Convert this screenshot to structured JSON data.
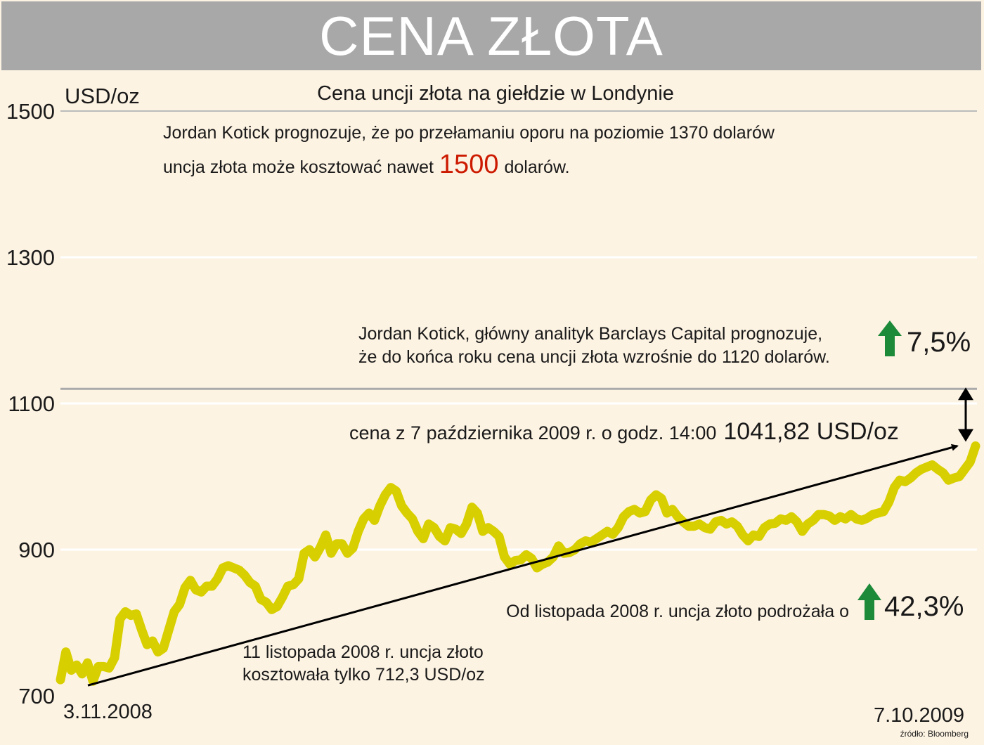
{
  "header": {
    "title": "CENA ZŁOTA"
  },
  "chart_data": {
    "type": "line",
    "title": "Cena uncji złota na giełdzie w Londynie",
    "ylabel": "USD/oz",
    "xlabel": "",
    "ylim": [
      700,
      1500
    ],
    "yticks": [
      "1500",
      "1300",
      "1100",
      "900",
      "700"
    ],
    "x_start_label": "3.11.2008",
    "x_end_label": "7.10.2009",
    "series": [
      {
        "name": "Cena złota",
        "color": "#d8cf00",
        "values": [
          722,
          760,
          735,
          742,
          730,
          745,
          720,
          740,
          740,
          738,
          752,
          805,
          815,
          810,
          812,
          790,
          770,
          775,
          760,
          765,
          790,
          815,
          825,
          848,
          858,
          845,
          842,
          850,
          850,
          860,
          875,
          878,
          875,
          872,
          865,
          855,
          850,
          832,
          828,
          818,
          822,
          835,
          850,
          852,
          860,
          895,
          900,
          890,
          903,
          920,
          895,
          908,
          908,
          895,
          902,
          925,
          942,
          950,
          940,
          960,
          975,
          985,
          980,
          960,
          950,
          942,
          925,
          915,
          935,
          930,
          918,
          912,
          930,
          928,
          922,
          935,
          958,
          950,
          925,
          930,
          925,
          918,
          890,
          880,
          885,
          886,
          893,
          888,
          875,
          880,
          883,
          890,
          905,
          895,
          896,
          900,
          908,
          912,
          910,
          915,
          920,
          925,
          921,
          930,
          945,
          952,
          955,
          950,
          952,
          968,
          975,
          970,
          950,
          955,
          945,
          938,
          932,
          932,
          935,
          930,
          928,
          938,
          940,
          935,
          938,
          932,
          920,
          912,
          920,
          918,
          930,
          935,
          936,
          942,
          940,
          945,
          938,
          925,
          935,
          940,
          948,
          948,
          946,
          940,
          945,
          942,
          948,
          942,
          940,
          943,
          948,
          950,
          952,
          965,
          985,
          995,
          993,
          998,
          1005,
          1010,
          1013,
          1016,
          1010,
          1005,
          995,
          998,
          1000,
          1010,
          1020,
          1041.82
        ]
      }
    ],
    "trend_line": {
      "from_value": 712.3,
      "to_value": 1041.82
    },
    "reference_line": {
      "value": 1120
    },
    "annotations": {
      "forecast_1500_line1": "Jordan Kotick prognozuje, że po przełamaniu oporu na poziomie 1370 dolarów",
      "forecast_1500_pre": "uncja złota może kosztować nawet",
      "forecast_1500_value": "1500",
      "forecast_1500_post": "dolarów.",
      "forecast_1120_line1": "Jordan Kotick, główny analityk Barclays Capital prognozuje,",
      "forecast_1120_line2": "że do końca roku cena uncji złota wzrośnie do 1120 dolarów.",
      "pct_up_forecast": "7,5%",
      "current_price_label": "cena z 7 października 2009 r. o godz. 14:00",
      "current_price_value": "1041,82 USD/oz",
      "yearly_gain_label": "Od listopada 2008 r. uncja złoto podrożała o",
      "yearly_gain_value": "42,3%",
      "low_note_line1": "11 listopada 2008 r. uncja złoto",
      "low_note_line2": "kosztowała tylko 712,3 USD/oz"
    },
    "source": "źródło: Bloomberg"
  },
  "colors": {
    "background": "#fdf3e3",
    "title_bar": "#a8a8a8",
    "line": "#d8cf00",
    "grid": "#ffffff",
    "reference": "#aaaaaa",
    "accent_red": "#cc1a00",
    "arrow_green": "#1d8a3a"
  }
}
